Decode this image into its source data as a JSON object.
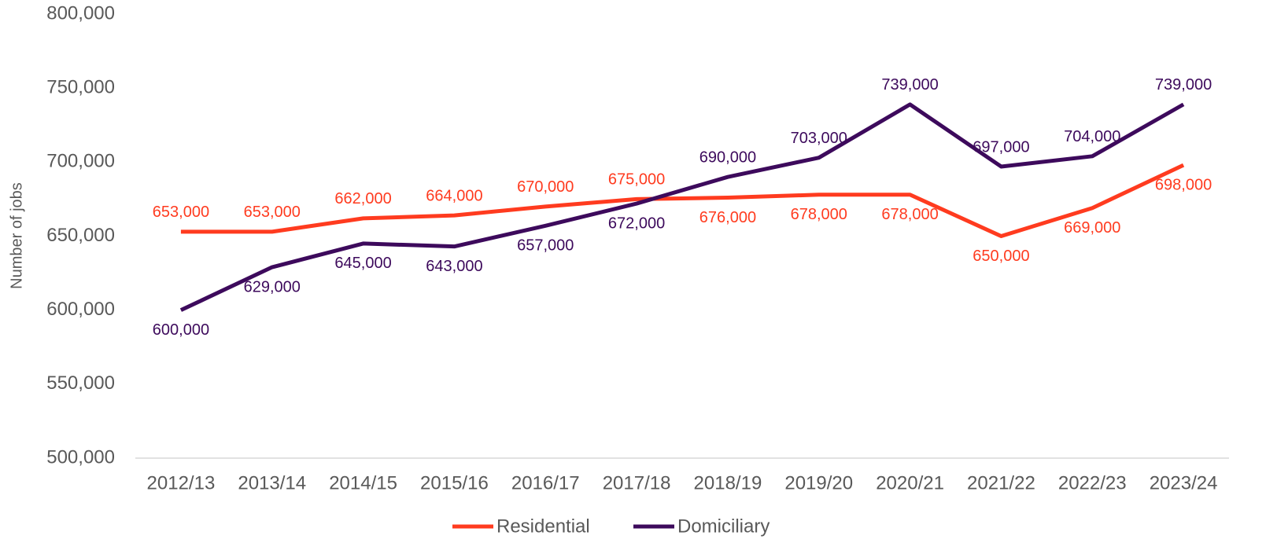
{
  "chart_data": {
    "type": "line",
    "y_label": "Number of jobs",
    "categories": [
      "2012/13",
      "2013/14",
      "2014/15",
      "2015/16",
      "2016/17",
      "2017/18",
      "2018/19",
      "2019/20",
      "2020/21",
      "2021/22",
      "2022/23",
      "2023/24"
    ],
    "series": [
      {
        "name": "Residential",
        "color": "#ff3b1f",
        "values": [
          653000,
          653000,
          662000,
          664000,
          670000,
          675000,
          676000,
          678000,
          678000,
          650000,
          669000,
          698000
        ],
        "value_labels": [
          "653,000",
          "653,000",
          "662,000",
          "664,000",
          "670,000",
          "675,000",
          "676,000",
          "678,000",
          "678,000",
          "650,000",
          "669,000",
          "698,000"
        ]
      },
      {
        "name": "Domiciliary",
        "color": "#3d0a5c",
        "values": [
          600000,
          629000,
          645000,
          643000,
          657000,
          672000,
          690000,
          703000,
          739000,
          697000,
          704000,
          739000
        ],
        "value_labels": [
          "600,000",
          "629,000",
          "645,000",
          "643,000",
          "657,000",
          "672,000",
          "690,000",
          "703,000",
          "739,000",
          "697,000",
          "704,000",
          "739,000"
        ]
      }
    ],
    "ylim": [
      500000,
      800000
    ],
    "yticks": [
      {
        "value": 500000,
        "label": "500,000"
      },
      {
        "value": 550000,
        "label": "550,000"
      },
      {
        "value": 600000,
        "label": "600,000"
      },
      {
        "value": 650000,
        "label": "650,000"
      },
      {
        "value": 700000,
        "label": "700,000"
      },
      {
        "value": 750000,
        "label": "750,000"
      },
      {
        "value": 800000,
        "label": "800,000"
      }
    ],
    "legend": "bottom"
  }
}
